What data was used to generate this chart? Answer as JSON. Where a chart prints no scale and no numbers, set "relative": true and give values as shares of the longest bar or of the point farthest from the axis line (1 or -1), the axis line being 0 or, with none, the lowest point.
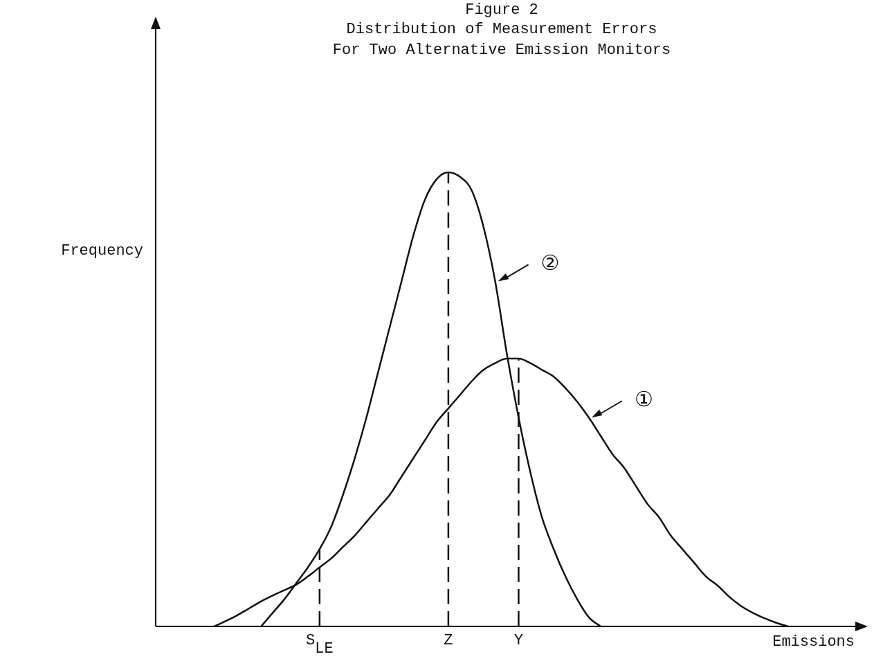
{
  "chart_data": {
    "type": "line",
    "relative": true,
    "title": "Figure 2",
    "subtitle": "Distribution of Measurement Errors\nFor Two Alternative Emission Monitors",
    "xlabel": "Emissions",
    "ylabel": "Frequency",
    "legend": "right",
    "grid": false,
    "marker": "none",
    "line_style": "solid",
    "categories": [
      null,
      null,
      null,
      null,
      null,
      null,
      null,
      null,
      null,
      null,
      null,
      null,
      null,
      null,
      "S$_{LE}$",
      null,
      null,
      null,
      null,
      null,
      null,
      null,
      null,
      null,
      null,
      "Z",
      null,
      null,
      null,
      null,
      null,
      "Y",
      null,
      null,
      null,
      null,
      null,
      null,
      null,
      null,
      null,
      null,
      null,
      null,
      null,
      null,
      null,
      null,
      null,
      null,
      null,
      null,
      null,
      null,
      null,
      null,
      null,
      null,
      null,
      null,
      null
    ],
    "series": [
      {
        "name": "①",
        "color": "#111111",
        "values": [
          null,
          null,
          null,
          null,
          null,
          0,
          0.012,
          0.025,
          0.04,
          0.055,
          0.068,
          0.08,
          0.092,
          0.11,
          0.13,
          0.15,
          0.175,
          0.2,
          0.23,
          0.26,
          0.29,
          0.33,
          0.37,
          0.41,
          0.45,
          0.48,
          0.51,
          0.54,
          0.565,
          0.58,
          0.59,
          0.59,
          0.58,
          0.565,
          0.55,
          0.525,
          0.495,
          0.46,
          0.42,
          0.38,
          0.35,
          0.31,
          0.27,
          0.24,
          0.2,
          0.17,
          0.14,
          0.11,
          0.09,
          0.065,
          0.045,
          0.03,
          0.018,
          0.008,
          0,
          null,
          null,
          null,
          null,
          null,
          null
        ]
      },
      {
        "name": "②",
        "color": "#111111",
        "values": [
          null,
          null,
          null,
          null,
          null,
          null,
          null,
          null,
          null,
          0,
          0.03,
          0.06,
          0.095,
          0.13,
          0.17,
          0.22,
          0.29,
          0.37,
          0.46,
          0.56,
          0.66,
          0.76,
          0.86,
          0.94,
          0.985,
          1,
          0.99,
          0.96,
          0.88,
          0.76,
          0.6,
          0.46,
          0.34,
          0.24,
          0.17,
          0.11,
          0.06,
          0.02,
          0,
          null,
          null,
          null,
          null,
          null,
          null,
          null,
          null,
          null,
          null,
          null,
          null,
          null,
          null,
          null,
          null,
          null,
          null,
          null,
          null,
          null,
          null
        ]
      }
    ],
    "ref_lines": [
      {
        "axis": "x",
        "value": "S$_{LE}$",
        "label": null,
        "color": "#111111",
        "line_style": "dashed"
      },
      {
        "axis": "x",
        "value": "Z",
        "label": null,
        "color": "#111111",
        "line_style": "dashed"
      },
      {
        "axis": "x",
        "value": "Y",
        "label": null,
        "color": "#111111",
        "line_style": "dashed"
      }
    ]
  }
}
